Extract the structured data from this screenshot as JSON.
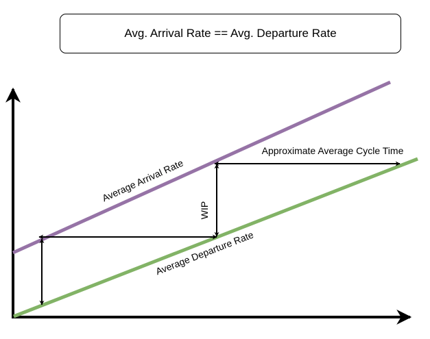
{
  "title": "Avg. Arrival Rate == Avg. Departure Rate",
  "labels": {
    "arrival": "Average Arrival Rate",
    "departure": "Average Departure Rate",
    "cycle_time": "Approximate Average Cycle Time",
    "wip": "WIP"
  },
  "colors": {
    "arrival_line": "#9673a6",
    "departure_line": "#82b366",
    "axis": "#000000"
  }
}
